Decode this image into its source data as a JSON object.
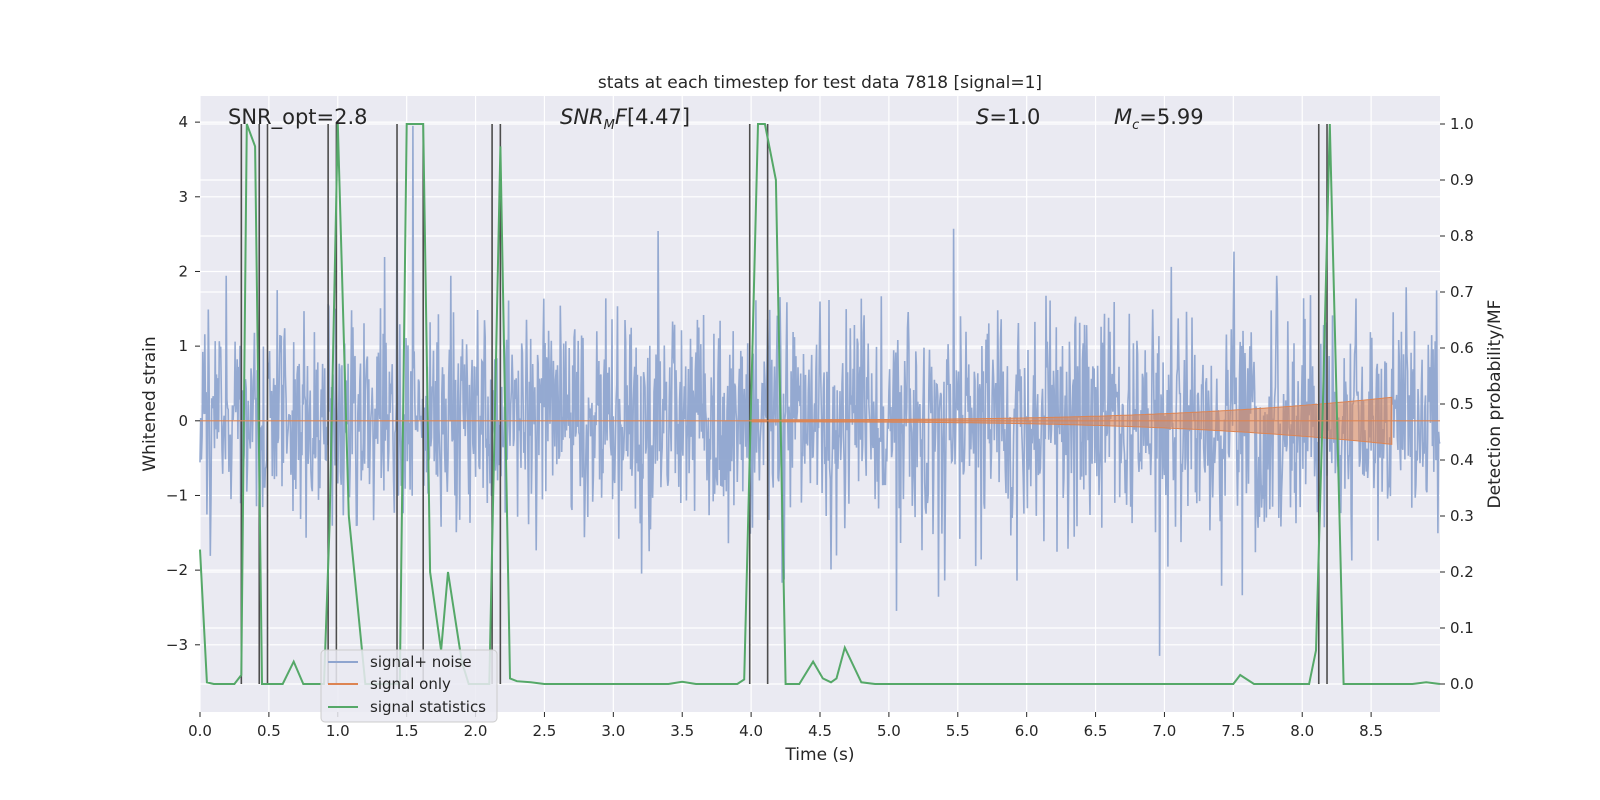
{
  "chart_data": {
    "type": "line",
    "title": "stats at each timestep for test data 7818 [signal=1]",
    "xlabel": "Time (s)",
    "ylabel_left": "Whitened strain",
    "ylabel_right": "Detection probability/MF",
    "xlim": [
      0,
      9.0
    ],
    "ylim_left": [
      -3.9,
      4.35
    ],
    "ylim_right": [
      -0.05,
      1.05
    ],
    "xticks": [
      "0.0",
      "0.5",
      "1.0",
      "1.5",
      "2.0",
      "2.5",
      "3.0",
      "3.5",
      "4.0",
      "4.5",
      "5.0",
      "5.5",
      "6.0",
      "6.5",
      "7.0",
      "7.5",
      "8.0",
      "8.5"
    ],
    "yticks_left": [
      "−3",
      "−2",
      "−1",
      "0",
      "1",
      "2",
      "3",
      "4"
    ],
    "yticks_right": [
      "0.0",
      "0.1",
      "0.2",
      "0.3",
      "0.4",
      "0.5",
      "0.6",
      "0.7",
      "0.8",
      "0.9",
      "1.0"
    ],
    "annotations": {
      "snr_opt": "SNR_opt=2.8",
      "snr_mf": "[4.47]",
      "s_value": "=1.0",
      "mc_value": "=5.99"
    },
    "legend": [
      "signal+ noise",
      "signal only",
      "signal statistics"
    ],
    "colors": {
      "noise": "#8fa5cf",
      "signal": "#dd8452",
      "stats": "#55a868",
      "vline": "#4d4d4d",
      "background": "#eaeaf2",
      "grid": "#ffffff"
    },
    "vlines": [
      0.3,
      0.43,
      0.49,
      0.93,
      0.99,
      1.43,
      1.62,
      2.12,
      2.18,
      3.99,
      4.12,
      8.12,
      8.18
    ],
    "stats_series": {
      "name": "signal statistics",
      "x": [
        0.0,
        0.05,
        0.1,
        0.2,
        0.25,
        0.3,
        0.34,
        0.4,
        0.45,
        0.5,
        0.6,
        0.68,
        0.75,
        0.85,
        0.9,
        0.94,
        1.0,
        1.08,
        1.2,
        1.3,
        1.4,
        1.45,
        1.5,
        1.55,
        1.62,
        1.67,
        1.75,
        1.8,
        1.9,
        1.95,
        2.0,
        2.1,
        2.18,
        2.25,
        2.3,
        2.4,
        2.5,
        3.0,
        3.4,
        3.5,
        3.6,
        3.9,
        3.95,
        4.05,
        4.1,
        4.18,
        4.25,
        4.35,
        4.45,
        4.52,
        4.58,
        4.62,
        4.68,
        4.8,
        4.9,
        5.0,
        7.5,
        7.55,
        7.65,
        8.05,
        8.1,
        8.15,
        8.2,
        8.3,
        8.5,
        8.8,
        8.9,
        9.0
      ],
      "y": [
        0.24,
        0.003,
        0.0,
        0.0,
        0.0,
        0.016,
        1.0,
        0.96,
        0.0,
        0.0,
        0.0,
        0.04,
        0.0,
        0.0,
        0.0,
        0.28,
        1.0,
        0.3,
        0.0,
        0.0,
        0.0,
        0.0,
        1.0,
        1.0,
        1.0,
        0.2,
        0.06,
        0.2,
        0.04,
        0.0,
        0.0,
        0.0,
        0.96,
        0.01,
        0.005,
        0.003,
        0.0,
        0.0,
        0.0,
        0.004,
        0.0,
        0.0,
        0.008,
        1.0,
        1.0,
        0.9,
        0.0,
        0.0,
        0.04,
        0.01,
        0.003,
        0.01,
        0.065,
        0.003,
        0.0,
        0.0,
        0.0,
        0.016,
        0.0,
        0.0,
        0.06,
        0.5,
        1.0,
        0.0,
        0.0,
        0.0,
        0.003,
        0.0
      ]
    }
  }
}
